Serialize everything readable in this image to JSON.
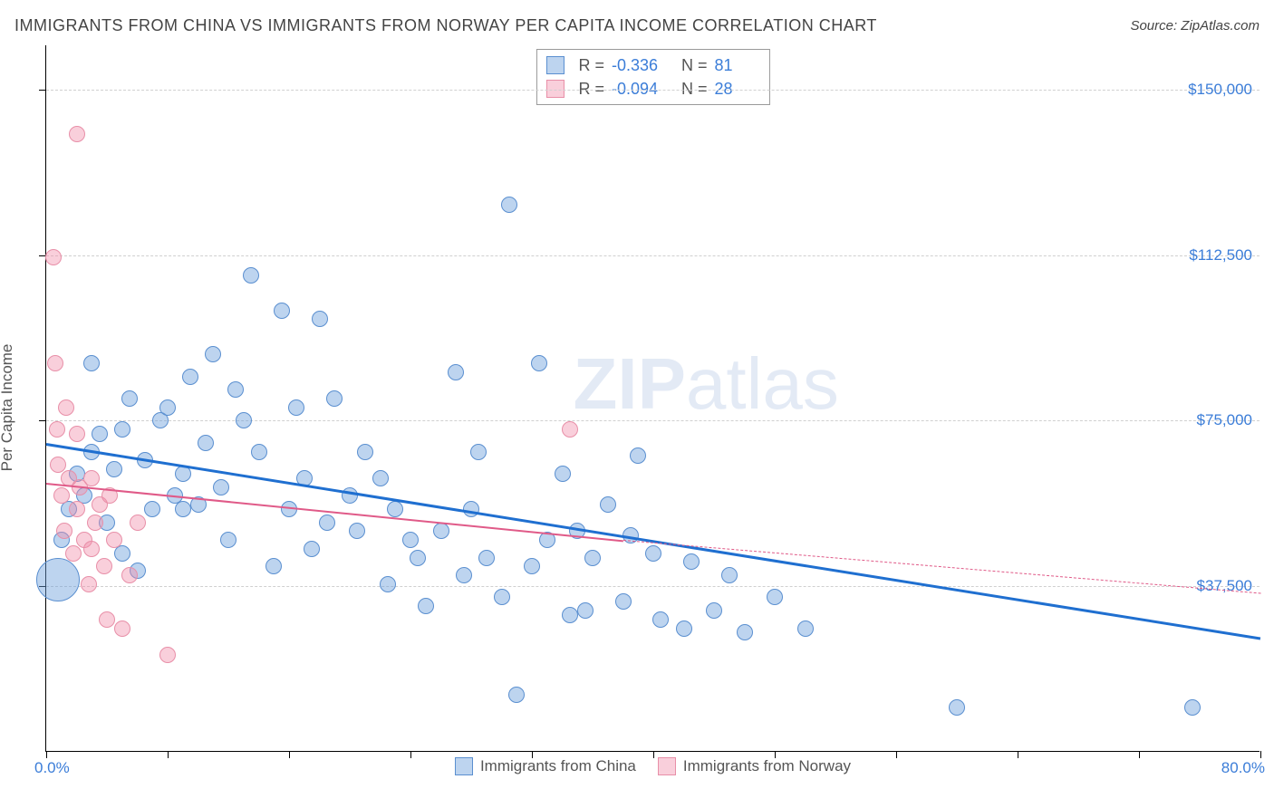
{
  "title": "IMMIGRANTS FROM CHINA VS IMMIGRANTS FROM NORWAY PER CAPITA INCOME CORRELATION CHART",
  "source": "Source: ZipAtlas.com",
  "watermark_a": "ZIP",
  "watermark_b": "atlas",
  "chart": {
    "type": "scatter",
    "background_color": "#ffffff",
    "grid_color": "#d0d0d0",
    "axis_color": "#000000",
    "label_color": "#3b7dd8",
    "yaxis_title": "Per Capita Income",
    "xlim": [
      0,
      80
    ],
    "ylim": [
      0,
      160000
    ],
    "xticks_percent": [
      0,
      8,
      16,
      24,
      32,
      40,
      48,
      56,
      64,
      72,
      80
    ],
    "xmin_label": "0.0%",
    "xmax_label": "80.0%",
    "ygrid": [
      {
        "value": 37500,
        "label": "$37,500"
      },
      {
        "value": 75000,
        "label": "$75,000"
      },
      {
        "value": 112500,
        "label": "$112,500"
      },
      {
        "value": 150000,
        "label": "$150,000"
      }
    ],
    "series": [
      {
        "name": "Immigrants from China",
        "fill": "rgba(108,160,220,0.45)",
        "stroke": "#5a8fd0",
        "trend_color": "#1f6fd0",
        "trend_width": 3,
        "trend_dash": "solid",
        "R": "-0.336",
        "N": "81",
        "trend": {
          "x1": 0,
          "y1": 70000,
          "x2": 80,
          "y2": 26000
        },
        "points": [
          {
            "x": 1.0,
            "y": 48000,
            "r": 9
          },
          {
            "x": 0.8,
            "y": 39000,
            "r": 24
          },
          {
            "x": 1.5,
            "y": 55000,
            "r": 9
          },
          {
            "x": 2.0,
            "y": 63000,
            "r": 9
          },
          {
            "x": 2.5,
            "y": 58000,
            "r": 9
          },
          {
            "x": 3.0,
            "y": 68000,
            "r": 9
          },
          {
            "x": 3.5,
            "y": 72000,
            "r": 9
          },
          {
            "x": 4.0,
            "y": 52000,
            "r": 9
          },
          {
            "x": 4.5,
            "y": 64000,
            "r": 9
          },
          {
            "x": 5.0,
            "y": 45000,
            "r": 9
          },
          {
            "x": 5.0,
            "y": 73000,
            "r": 9
          },
          {
            "x": 6.0,
            "y": 41000,
            "r": 9
          },
          {
            "x": 6.5,
            "y": 66000,
            "r": 9
          },
          {
            "x": 7.0,
            "y": 55000,
            "r": 9
          },
          {
            "x": 7.5,
            "y": 75000,
            "r": 9
          },
          {
            "x": 8.0,
            "y": 78000,
            "r": 9
          },
          {
            "x": 8.5,
            "y": 58000,
            "r": 9
          },
          {
            "x": 9.0,
            "y": 63000,
            "r": 9
          },
          {
            "x": 9.5,
            "y": 85000,
            "r": 9
          },
          {
            "x": 10.0,
            "y": 56000,
            "r": 9
          },
          {
            "x": 10.5,
            "y": 70000,
            "r": 9
          },
          {
            "x": 11.0,
            "y": 90000,
            "r": 9
          },
          {
            "x": 11.5,
            "y": 60000,
            "r": 9
          },
          {
            "x": 12.0,
            "y": 48000,
            "r": 9
          },
          {
            "x": 12.5,
            "y": 82000,
            "r": 9
          },
          {
            "x": 13.0,
            "y": 75000,
            "r": 9
          },
          {
            "x": 13.5,
            "y": 108000,
            "r": 9
          },
          {
            "x": 14.0,
            "y": 68000,
            "r": 9
          },
          {
            "x": 15.0,
            "y": 42000,
            "r": 9
          },
          {
            "x": 15.5,
            "y": 100000,
            "r": 9
          },
          {
            "x": 16.0,
            "y": 55000,
            "r": 9
          },
          {
            "x": 16.5,
            "y": 78000,
            "r": 9
          },
          {
            "x": 17.0,
            "y": 62000,
            "r": 9
          },
          {
            "x": 18.0,
            "y": 98000,
            "r": 9
          },
          {
            "x": 18.5,
            "y": 52000,
            "r": 9
          },
          {
            "x": 19.0,
            "y": 80000,
            "r": 9
          },
          {
            "x": 20.0,
            "y": 58000,
            "r": 9
          },
          {
            "x": 20.5,
            "y": 50000,
            "r": 9
          },
          {
            "x": 21.0,
            "y": 68000,
            "r": 9
          },
          {
            "x": 22.0,
            "y": 62000,
            "r": 9
          },
          {
            "x": 22.5,
            "y": 38000,
            "r": 9
          },
          {
            "x": 23.0,
            "y": 55000,
            "r": 9
          },
          {
            "x": 24.0,
            "y": 48000,
            "r": 9
          },
          {
            "x": 24.5,
            "y": 44000,
            "r": 9
          },
          {
            "x": 25.0,
            "y": 33000,
            "r": 9
          },
          {
            "x": 26.0,
            "y": 50000,
            "r": 9
          },
          {
            "x": 27.0,
            "y": 86000,
            "r": 9
          },
          {
            "x": 27.5,
            "y": 40000,
            "r": 9
          },
          {
            "x": 28.0,
            "y": 55000,
            "r": 9
          },
          {
            "x": 28.5,
            "y": 68000,
            "r": 9
          },
          {
            "x": 29.0,
            "y": 44000,
            "r": 9
          },
          {
            "x": 30.0,
            "y": 35000,
            "r": 9
          },
          {
            "x": 30.5,
            "y": 124000,
            "r": 9
          },
          {
            "x": 31.0,
            "y": 13000,
            "r": 9
          },
          {
            "x": 32.0,
            "y": 42000,
            "r": 9
          },
          {
            "x": 32.5,
            "y": 88000,
            "r": 9
          },
          {
            "x": 33.0,
            "y": 48000,
            "r": 9
          },
          {
            "x": 34.0,
            "y": 63000,
            "r": 9
          },
          {
            "x": 34.5,
            "y": 31000,
            "r": 9
          },
          {
            "x": 35.0,
            "y": 50000,
            "r": 9
          },
          {
            "x": 35.5,
            "y": 32000,
            "r": 9
          },
          {
            "x": 36.0,
            "y": 44000,
            "r": 9
          },
          {
            "x": 37.0,
            "y": 56000,
            "r": 9
          },
          {
            "x": 38.0,
            "y": 34000,
            "r": 9
          },
          {
            "x": 38.5,
            "y": 49000,
            "r": 9
          },
          {
            "x": 39.0,
            "y": 67000,
            "r": 9
          },
          {
            "x": 40.0,
            "y": 45000,
            "r": 9
          },
          {
            "x": 40.5,
            "y": 30000,
            "r": 9
          },
          {
            "x": 42.0,
            "y": 28000,
            "r": 9
          },
          {
            "x": 42.5,
            "y": 43000,
            "r": 9
          },
          {
            "x": 44.0,
            "y": 32000,
            "r": 9
          },
          {
            "x": 45.0,
            "y": 40000,
            "r": 9
          },
          {
            "x": 46.0,
            "y": 27000,
            "r": 9
          },
          {
            "x": 48.0,
            "y": 35000,
            "r": 9
          },
          {
            "x": 50.0,
            "y": 28000,
            "r": 9
          },
          {
            "x": 60.0,
            "y": 10000,
            "r": 9
          },
          {
            "x": 75.5,
            "y": 10000,
            "r": 9
          },
          {
            "x": 3.0,
            "y": 88000,
            "r": 9
          },
          {
            "x": 5.5,
            "y": 80000,
            "r": 9
          },
          {
            "x": 9.0,
            "y": 55000,
            "r": 9
          },
          {
            "x": 17.5,
            "y": 46000,
            "r": 9
          }
        ]
      },
      {
        "name": "Immigrants from Norway",
        "fill": "rgba(240,140,170,0.42)",
        "stroke": "#e88fa8",
        "trend_color": "#e05a88",
        "trend_width": 2,
        "trend_dash": "solid",
        "trend_dash2": "5,5",
        "R": "-0.094",
        "N": "28",
        "trend": {
          "x1": 0,
          "y1": 61000,
          "x2": 38,
          "y2": 48000
        },
        "trend_ext": {
          "x1": 38,
          "y1": 48000,
          "x2": 80,
          "y2": 36000
        },
        "points": [
          {
            "x": 0.5,
            "y": 112000,
            "r": 9
          },
          {
            "x": 0.6,
            "y": 88000,
            "r": 9
          },
          {
            "x": 0.8,
            "y": 65000,
            "r": 9
          },
          {
            "x": 1.0,
            "y": 58000,
            "r": 9
          },
          {
            "x": 1.2,
            "y": 50000,
            "r": 9
          },
          {
            "x": 1.3,
            "y": 78000,
            "r": 9
          },
          {
            "x": 1.5,
            "y": 62000,
            "r": 9
          },
          {
            "x": 1.8,
            "y": 45000,
            "r": 9
          },
          {
            "x": 2.0,
            "y": 55000,
            "r": 9
          },
          {
            "x": 2.0,
            "y": 72000,
            "r": 9
          },
          {
            "x": 2.2,
            "y": 60000,
            "r": 9
          },
          {
            "x": 2.5,
            "y": 48000,
            "r": 9
          },
          {
            "x": 2.8,
            "y": 38000,
            "r": 9
          },
          {
            "x": 2.0,
            "y": 140000,
            "r": 9
          },
          {
            "x": 3.0,
            "y": 62000,
            "r": 9
          },
          {
            "x": 3.2,
            "y": 52000,
            "r": 9
          },
          {
            "x": 3.5,
            "y": 56000,
            "r": 9
          },
          {
            "x": 3.8,
            "y": 42000,
            "r": 9
          },
          {
            "x": 4.0,
            "y": 30000,
            "r": 9
          },
          {
            "x": 4.2,
            "y": 58000,
            "r": 9
          },
          {
            "x": 4.5,
            "y": 48000,
            "r": 9
          },
          {
            "x": 5.0,
            "y": 28000,
            "r": 9
          },
          {
            "x": 5.5,
            "y": 40000,
            "r": 9
          },
          {
            "x": 6.0,
            "y": 52000,
            "r": 9
          },
          {
            "x": 8.0,
            "y": 22000,
            "r": 9
          },
          {
            "x": 34.5,
            "y": 73000,
            "r": 9
          },
          {
            "x": 3.0,
            "y": 46000,
            "r": 9
          },
          {
            "x": 0.7,
            "y": 73000,
            "r": 9
          }
        ]
      }
    ]
  }
}
